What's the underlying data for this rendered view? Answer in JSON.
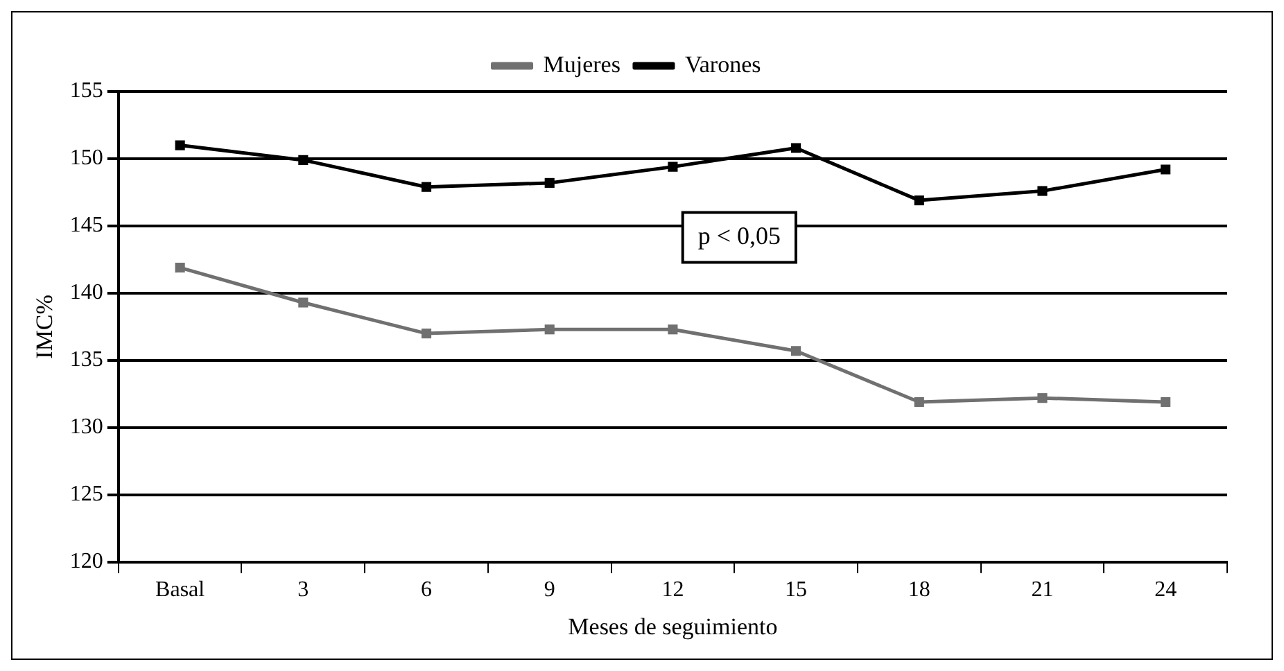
{
  "chart_data": {
    "type": "line",
    "xlabel": "Meses de seguimiento",
    "ylabel": "IMC%",
    "categories": [
      "Basal",
      "3",
      "6",
      "9",
      "12",
      "15",
      "18",
      "21",
      "24"
    ],
    "series": [
      {
        "name": "Mujeres",
        "color": "#707070",
        "values": [
          141.9,
          139.3,
          137,
          137.3,
          137.3,
          135.7,
          131.9,
          132.2,
          131.9
        ]
      },
      {
        "name": "Varones",
        "color": "#000000",
        "values": [
          151,
          149.9,
          147.9,
          148.2,
          149.4,
          150.8,
          146.9,
          147.6,
          149.2
        ]
      }
    ],
    "ylim": [
      120,
      155
    ],
    "yticks": [
      120,
      125,
      130,
      135,
      140,
      145,
      150,
      155
    ],
    "grid": "y",
    "legend": "top",
    "marker": "square",
    "line_style": "solid",
    "annotations": [
      "p < 0,05"
    ]
  }
}
